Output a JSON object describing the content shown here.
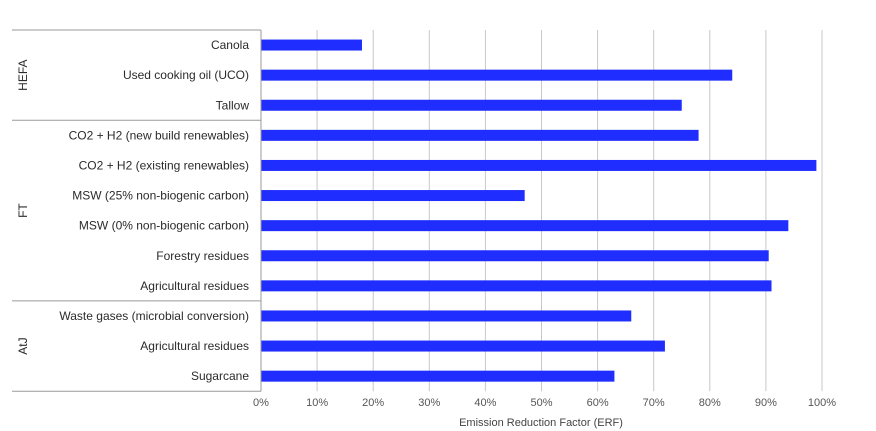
{
  "chart_data": {
    "type": "bar",
    "orientation": "horizontal",
    "xlabel": "Emission Reduction Factor (ERF)",
    "ylabel": "",
    "xlim": [
      0,
      100
    ],
    "x_ticks": [
      "0%",
      "10%",
      "20%",
      "30%",
      "40%",
      "50%",
      "60%",
      "70%",
      "80%",
      "90%",
      "100%"
    ],
    "grid": true,
    "bar_color": "#1f2eff",
    "groups": [
      {
        "name": "HEFA",
        "categories": [
          "Canola",
          "Used cooking oil (UCO)",
          "Tallow"
        ],
        "values": [
          18,
          84,
          75
        ]
      },
      {
        "name": "FT",
        "categories": [
          "CO2 + H2 (new build renewables)",
          "CO2 + H2 (existing renewables)",
          "MSW (25% non-biogenic carbon)",
          "MSW (0% non-biogenic carbon)",
          "Forestry residues",
          "Agricultural residues"
        ],
        "values": [
          78,
          99,
          47,
          94,
          90.5,
          91
        ]
      },
      {
        "name": "AtJ",
        "categories": [
          "Waste gases (microbial conversion)",
          "Agricultural residues",
          "Sugarcane"
        ],
        "values": [
          66,
          72,
          63
        ]
      }
    ]
  }
}
